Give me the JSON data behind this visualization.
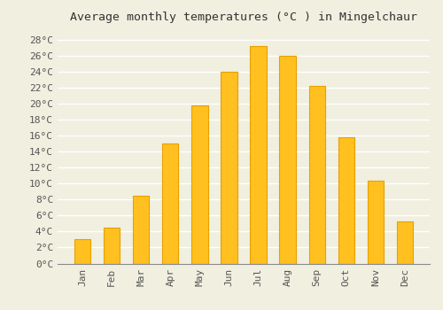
{
  "title": "Average monthly temperatures (°C ) in Mingelchaur",
  "months": [
    "Jan",
    "Feb",
    "Mar",
    "Apr",
    "May",
    "Jun",
    "Jul",
    "Aug",
    "Sep",
    "Oct",
    "Nov",
    "Dec"
  ],
  "values": [
    3.0,
    4.5,
    8.5,
    15.0,
    19.8,
    24.0,
    27.2,
    26.0,
    22.2,
    15.8,
    10.4,
    5.3
  ],
  "bar_color": "#FFC020",
  "bar_edge_color": "#E8A000",
  "background_color": "#F0EFE0",
  "grid_color": "#FFFFFF",
  "ylim": [
    0,
    29.5
  ],
  "yticks": [
    0,
    2,
    4,
    6,
    8,
    10,
    12,
    14,
    16,
    18,
    20,
    22,
    24,
    26,
    28
  ],
  "ytick_labels": [
    "0°C",
    "2°C",
    "4°C",
    "6°C",
    "8°C",
    "10°C",
    "12°C",
    "14°C",
    "16°C",
    "18°C",
    "20°C",
    "22°C",
    "24°C",
    "26°C",
    "28°C"
  ],
  "title_fontsize": 9.5,
  "tick_fontsize": 8,
  "font_family": "monospace"
}
